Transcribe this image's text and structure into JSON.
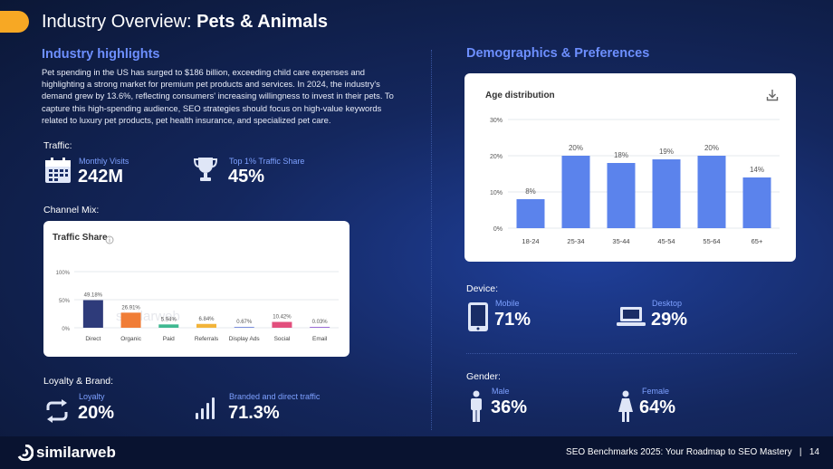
{
  "header": {
    "title_prefix": "Industry Overview: ",
    "title_bold": "Pets & Animals"
  },
  "highlights": {
    "title": "Industry highlights",
    "text": "Pet spending in the US has surged to $186 billion, exceeding child care expenses and highlighting a strong market for premium pet products and services. In 2024, the industry's demand grew by 13.6%, reflecting consumers' increasing willingness to invest in their pets. To capture this high-spending audience, SEO strategies should focus on high-value keywords related to luxury pet products, pet health insurance, and specialized pet care."
  },
  "traffic": {
    "label": "Traffic:",
    "visits_label": "Monthly Visits",
    "visits_value": "242M",
    "share_label": "Top 1%  Traffic Share",
    "share_value": "45%"
  },
  "channel_mix": {
    "label": "Channel Mix:",
    "card_title": "Traffic Share",
    "info_icon": "info-icon",
    "watermark": "similarweb"
  },
  "loyalty": {
    "label": "Loyalty & Brand:",
    "loyalty_label": "Loyalty",
    "loyalty_value": "20%",
    "branded_label": "Branded and direct traffic",
    "branded_value": "71.3%"
  },
  "demographics": {
    "title": "Demographics & Preferences",
    "card_title": "Age distribution",
    "download_icon": "download-icon"
  },
  "device": {
    "label": "Device:",
    "mobile_label": "Mobile",
    "mobile_value": "71%",
    "desktop_label": "Desktop",
    "desktop_value": "29%"
  },
  "gender": {
    "label": "Gender:",
    "male_label": "Male",
    "male_value": "36%",
    "female_label": "Female",
    "female_value": "64%"
  },
  "footer": {
    "brand": "similarweb",
    "text": "SEO Benchmarks 2025: Your Roadmap to SEO Mastery   |   14"
  },
  "colors": {
    "accent": "#f7a824",
    "highlight_blue": "#6d8fff",
    "bar_blue": "#5b83ec"
  },
  "chart_data": [
    {
      "type": "bar",
      "title": "Traffic Share",
      "categories": [
        "Direct",
        "Organic",
        "Paid",
        "Referrals",
        "Display Ads",
        "Social",
        "Email"
      ],
      "values": [
        49.18,
        26.91,
        5.94,
        6.84,
        0.67,
        10.42,
        0.03
      ],
      "value_labels": [
        "49.18%",
        "26.91%",
        "5.94%",
        "6.84%",
        "0.67%",
        "10.42%",
        "0.03%"
      ],
      "colors": [
        "#2e3b7a",
        "#f07d36",
        "#3fb991",
        "#f2b43a",
        "#7a8ede",
        "#e24f7d",
        "#9b6bd6"
      ],
      "yticks": [
        "0%",
        "50%",
        "100%"
      ],
      "ylim": [
        0,
        100
      ]
    },
    {
      "type": "bar",
      "title": "Age distribution",
      "categories": [
        "18-24",
        "25-34",
        "35-44",
        "45-54",
        "55-64",
        "65+"
      ],
      "values": [
        8,
        20,
        18,
        19,
        20,
        14
      ],
      "value_labels": [
        "8%",
        "20%",
        "18%",
        "19%",
        "20%",
        "14%"
      ],
      "yticks": [
        "0%",
        "10%",
        "20%",
        "30%"
      ],
      "ylim": [
        0,
        30
      ]
    }
  ]
}
